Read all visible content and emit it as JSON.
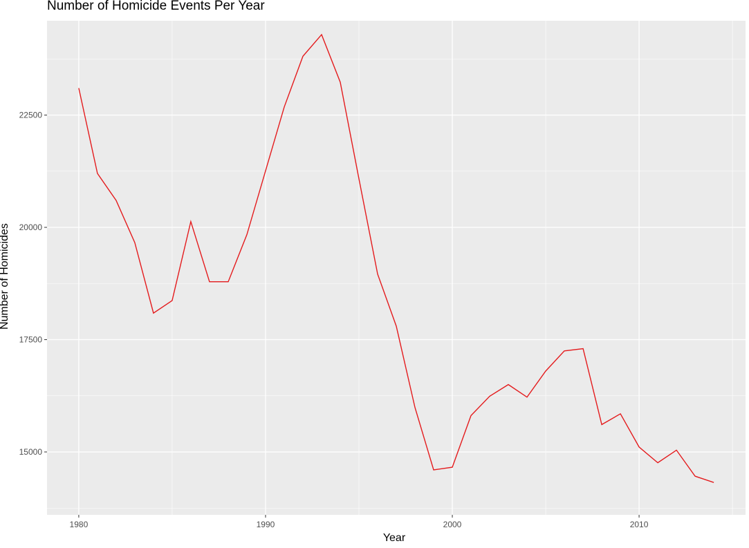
{
  "chart_data": {
    "type": "line",
    "title": "Number of Homicide Events Per Year",
    "xlabel": "Year",
    "ylabel": "Number of Homicides",
    "xlim": [
      1978.3,
      2015.7
    ],
    "ylim": [
      13600,
      24600
    ],
    "x_ticks": [
      1980,
      1990,
      2000,
      2010
    ],
    "y_ticks": [
      15000,
      17500,
      20000,
      22500
    ],
    "grid": true,
    "line_color": "#e41a1c",
    "panel_color": "#ebebeb",
    "series": [
      {
        "x": [
          1980,
          1981,
          1982,
          1983,
          1984,
          1985,
          1986,
          1987,
          1988,
          1989,
          1990,
          1991,
          1992,
          1993,
          1994,
          1995,
          1996,
          1997,
          1998,
          1999,
          2000,
          2001,
          2002,
          2003,
          2004,
          2005,
          2006,
          2007,
          2008,
          2009,
          2010,
          2011,
          2012,
          2013,
          2014
        ],
        "values": [
          23100,
          21200,
          20600,
          19660,
          18090,
          18370,
          20130,
          18790,
          18790,
          19840,
          21260,
          22680,
          23810,
          24290,
          23230,
          21080,
          18960,
          17800,
          15990,
          14600,
          14660,
          15810,
          16240,
          16500,
          16220,
          16800,
          17250,
          17300,
          15610,
          15850,
          15110,
          14760,
          15040,
          14460,
          14320
        ]
      }
    ]
  }
}
